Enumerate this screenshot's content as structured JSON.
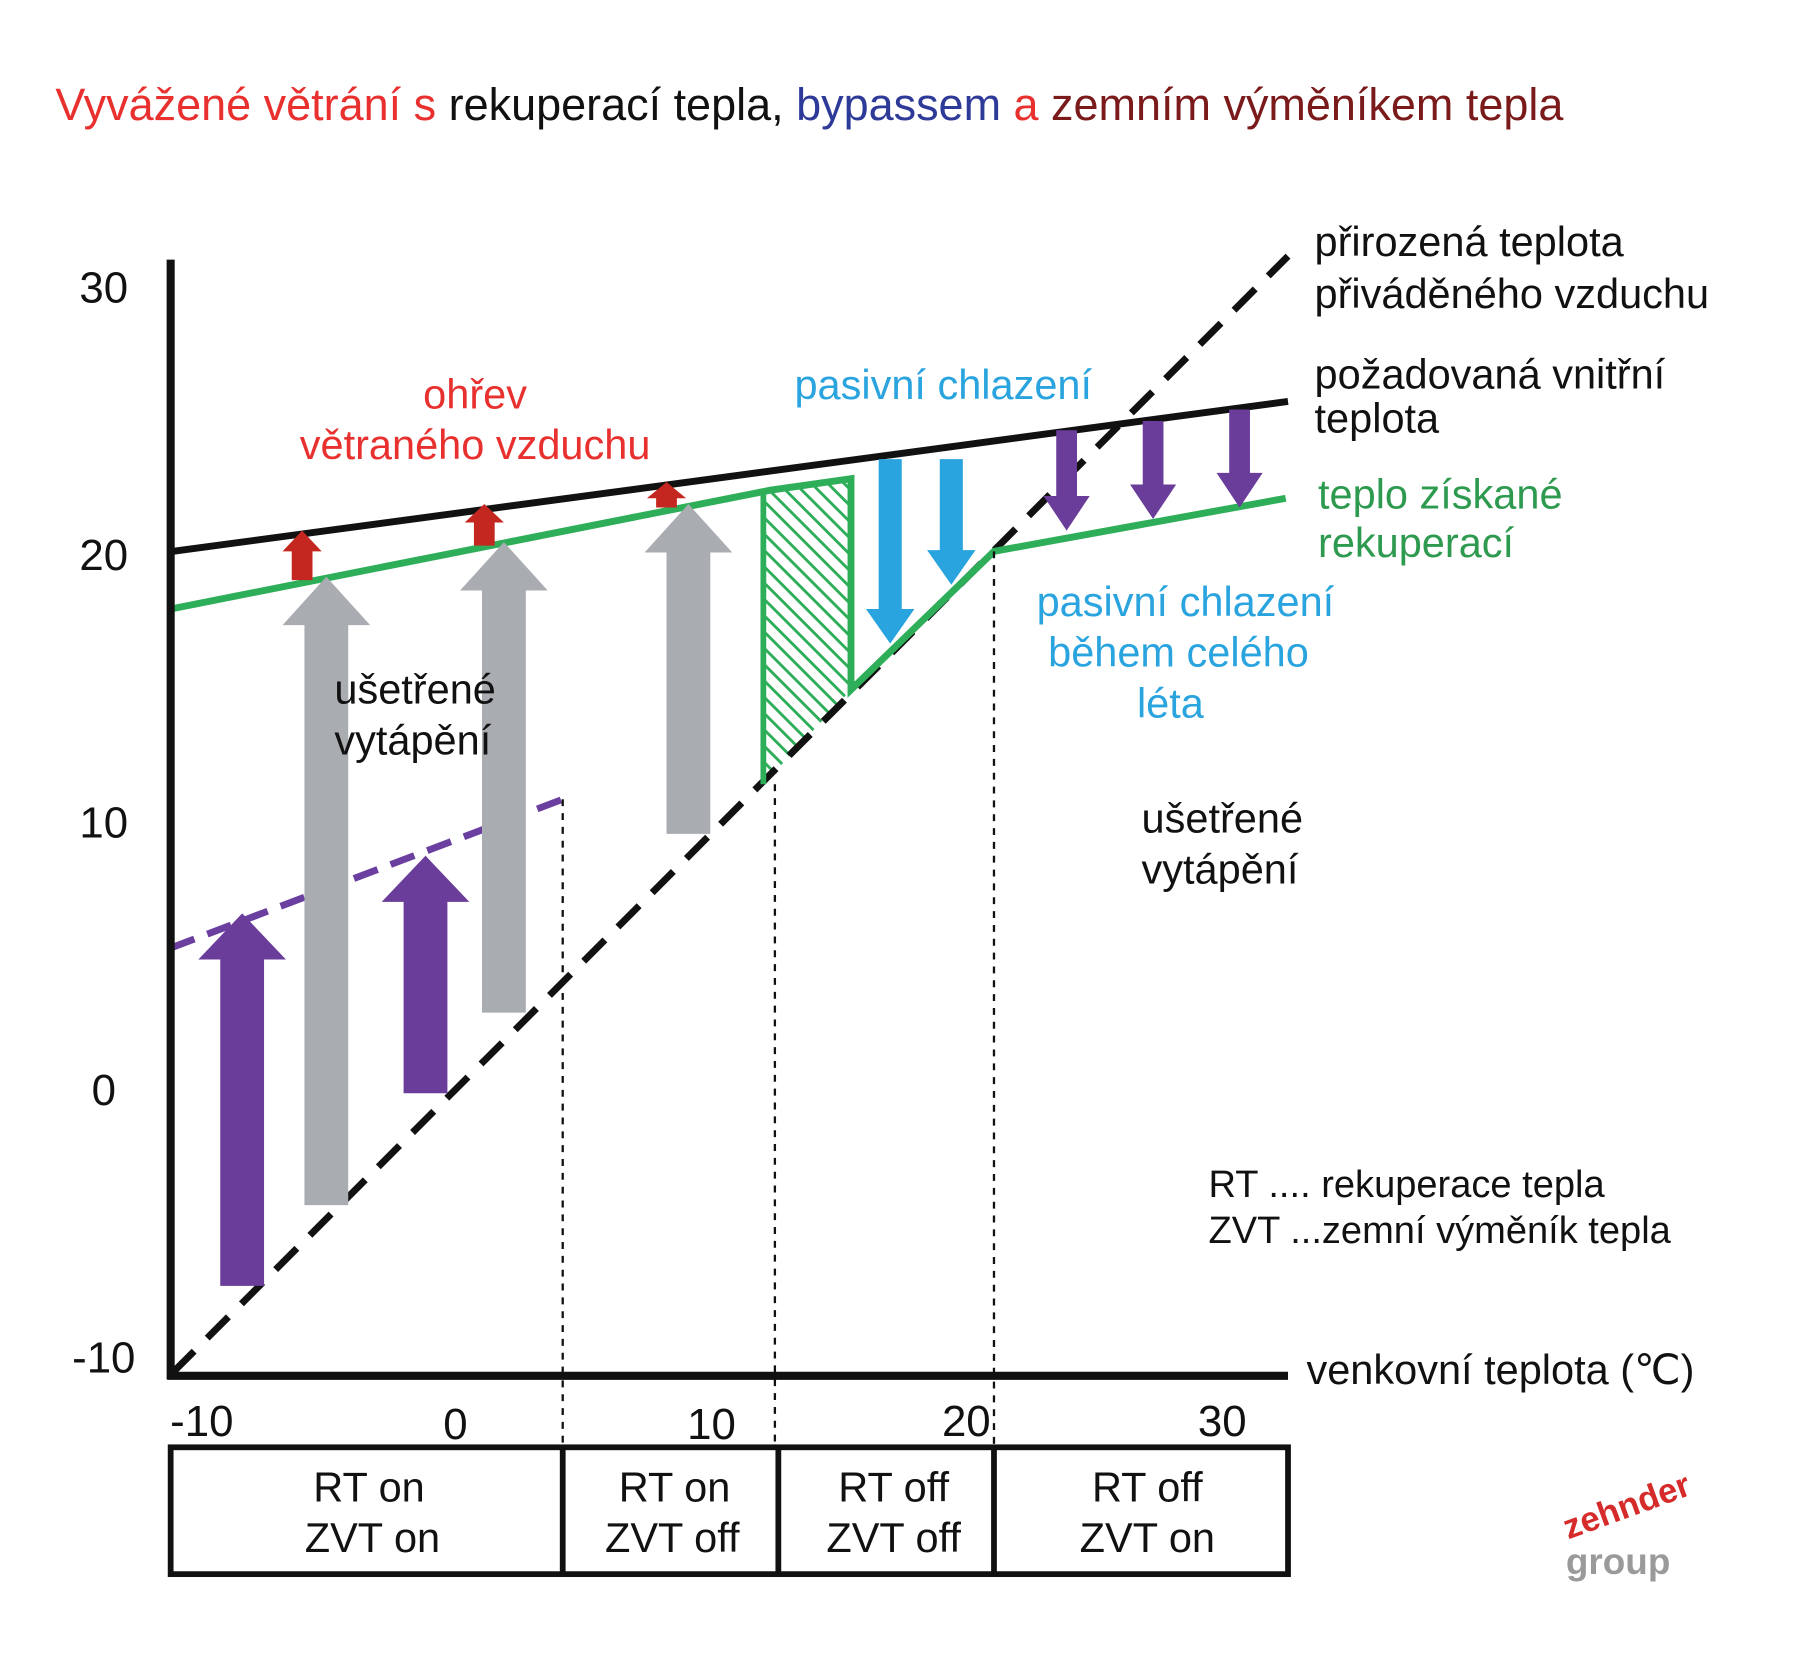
{
  "title": {
    "parts": [
      "Vyvážené větrání s",
      "rekuperací tepla,",
      "bypassem",
      "a",
      "zemním výměníkem tepla"
    ]
  },
  "y_axis": {
    "ticks": [
      "30",
      "20",
      "10",
      "0",
      "-10"
    ]
  },
  "x_axis": {
    "label": "venkovní teplota (℃)",
    "ticks": [
      "-10",
      "0",
      "10",
      "20",
      "30"
    ]
  },
  "labels": {
    "natural": [
      "přirozená teplota",
      "přiváděného vzduchu"
    ],
    "required": [
      "požadovaná vnitřní",
      "teplota"
    ],
    "recovered": [
      "teplo získané",
      "rekuperací"
    ],
    "heating": [
      "ohřev",
      "větraného vzduchu"
    ],
    "passive_cooling": "pasivní chlazení",
    "summer_cooling": [
      "pasivní chlazení",
      "během celého",
      "léta"
    ],
    "saved_left": [
      "ušetřené",
      "vytápění"
    ],
    "saved_right": [
      "ušetřené",
      "vytápění"
    ]
  },
  "table": {
    "cells": [
      [
        "RT on",
        "ZVT on"
      ],
      [
        "RT on",
        "ZVT  off"
      ],
      [
        "RT off",
        "ZVT off"
      ],
      [
        "RT off",
        "ZVT on"
      ]
    ]
  },
  "legend": [
    "RT .... rekuperace tepla",
    "ZVT ...zemní výměník tepla"
  ],
  "logo": [
    "zehnder",
    "group"
  ]
}
